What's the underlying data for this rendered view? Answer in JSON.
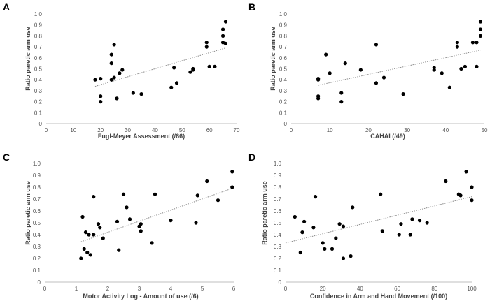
{
  "chart_data": [
    {
      "panel": "A",
      "type": "scatter",
      "xlabel": "Fugl-Meyer Assessment (/66)",
      "ylabel": "Ratio paretic arm use",
      "xlim": [
        0,
        70
      ],
      "ylim": [
        0,
        1.0
      ],
      "xticks": [
        0,
        10,
        20,
        30,
        40,
        50,
        60,
        70
      ],
      "yticks": [
        0,
        0.1,
        0.2,
        0.3,
        0.4,
        0.5,
        0.6,
        0.7,
        0.8,
        0.9,
        1.0
      ],
      "points": [
        {
          "x": 18,
          "y": 0.4
        },
        {
          "x": 20,
          "y": 0.41
        },
        {
          "x": 20,
          "y": 0.25
        },
        {
          "x": 20,
          "y": 0.2
        },
        {
          "x": 24,
          "y": 0.63
        },
        {
          "x": 24,
          "y": 0.55
        },
        {
          "x": 24,
          "y": 0.4
        },
        {
          "x": 25,
          "y": 0.72
        },
        {
          "x": 25,
          "y": 0.42
        },
        {
          "x": 26,
          "y": 0.23
        },
        {
          "x": 27,
          "y": 0.46
        },
        {
          "x": 28,
          "y": 0.49
        },
        {
          "x": 32,
          "y": 0.28
        },
        {
          "x": 35,
          "y": 0.27
        },
        {
          "x": 46,
          "y": 0.33
        },
        {
          "x": 47,
          "y": 0.51
        },
        {
          "x": 48,
          "y": 0.37
        },
        {
          "x": 53,
          "y": 0.47
        },
        {
          "x": 54,
          "y": 0.49
        },
        {
          "x": 54,
          "y": 0.5
        },
        {
          "x": 59,
          "y": 0.74
        },
        {
          "x": 59,
          "y": 0.7
        },
        {
          "x": 60,
          "y": 0.52
        },
        {
          "x": 62,
          "y": 0.52
        },
        {
          "x": 65,
          "y": 0.86
        },
        {
          "x": 65,
          "y": 0.8
        },
        {
          "x": 65,
          "y": 0.74
        },
        {
          "x": 66,
          "y": 0.93
        },
        {
          "x": 66,
          "y": 0.73
        }
      ],
      "trendline": {
        "x": [
          18,
          66
        ],
        "y": [
          0.34,
          0.69
        ]
      }
    },
    {
      "panel": "B",
      "type": "scatter",
      "xlabel": "CAHAI (/49)",
      "ylabel": "Ratio paretic arm use",
      "xlim": [
        0,
        50
      ],
      "ylim": [
        0,
        1.0
      ],
      "xticks": [
        0,
        10,
        20,
        30,
        40,
        50
      ],
      "yticks": [
        0,
        0.1,
        0.2,
        0.3,
        0.4,
        0.5,
        0.6,
        0.7,
        0.8,
        0.9,
        1.0
      ],
      "points": [
        {
          "x": 7,
          "y": 0.41
        },
        {
          "x": 7,
          "y": 0.4
        },
        {
          "x": 7,
          "y": 0.25
        },
        {
          "x": 7,
          "y": 0.23
        },
        {
          "x": 9,
          "y": 0.63
        },
        {
          "x": 10,
          "y": 0.46
        },
        {
          "x": 13,
          "y": 0.28
        },
        {
          "x": 13,
          "y": 0.2
        },
        {
          "x": 14,
          "y": 0.55
        },
        {
          "x": 18,
          "y": 0.49
        },
        {
          "x": 22,
          "y": 0.72
        },
        {
          "x": 22,
          "y": 0.37
        },
        {
          "x": 24,
          "y": 0.42
        },
        {
          "x": 29,
          "y": 0.27
        },
        {
          "x": 37,
          "y": 0.51
        },
        {
          "x": 37,
          "y": 0.49
        },
        {
          "x": 39,
          "y": 0.46
        },
        {
          "x": 41,
          "y": 0.33
        },
        {
          "x": 43,
          "y": 0.74
        },
        {
          "x": 43,
          "y": 0.7
        },
        {
          "x": 44,
          "y": 0.5
        },
        {
          "x": 45,
          "y": 0.52
        },
        {
          "x": 47,
          "y": 0.74
        },
        {
          "x": 48,
          "y": 0.74
        },
        {
          "x": 48,
          "y": 0.52
        },
        {
          "x": 49,
          "y": 0.93
        },
        {
          "x": 49,
          "y": 0.86
        },
        {
          "x": 49,
          "y": 0.8
        }
      ],
      "trendline": {
        "x": [
          7,
          49
        ],
        "y": [
          0.35,
          0.67
        ]
      }
    },
    {
      "panel": "C",
      "type": "scatter",
      "xlabel": "Motor Activity Log - Amount of use (/6)",
      "ylabel": "Ratio paretic arm use",
      "xlim": [
        0,
        6
      ],
      "ylim": [
        0,
        1.0
      ],
      "xticks": [
        0,
        1,
        2,
        3,
        4,
        5,
        6
      ],
      "yticks": [
        0,
        0.1,
        0.2,
        0.3,
        0.4,
        0.5,
        0.6,
        0.7,
        0.8,
        0.9,
        1.0
      ],
      "points": [
        {
          "x": 1.15,
          "y": 0.2
        },
        {
          "x": 1.2,
          "y": 0.55
        },
        {
          "x": 1.25,
          "y": 0.28
        },
        {
          "x": 1.3,
          "y": 0.42
        },
        {
          "x": 1.35,
          "y": 0.25
        },
        {
          "x": 1.4,
          "y": 0.4
        },
        {
          "x": 1.45,
          "y": 0.23
        },
        {
          "x": 1.55,
          "y": 0.72
        },
        {
          "x": 1.55,
          "y": 0.4
        },
        {
          "x": 1.7,
          "y": 0.49
        },
        {
          "x": 1.75,
          "y": 0.46
        },
        {
          "x": 1.85,
          "y": 0.37
        },
        {
          "x": 2.3,
          "y": 0.51
        },
        {
          "x": 2.35,
          "y": 0.27
        },
        {
          "x": 2.5,
          "y": 0.74
        },
        {
          "x": 2.6,
          "y": 0.63
        },
        {
          "x": 2.7,
          "y": 0.53
        },
        {
          "x": 3.0,
          "y": 0.47
        },
        {
          "x": 3.05,
          "y": 0.43
        },
        {
          "x": 3.05,
          "y": 0.49
        },
        {
          "x": 3.4,
          "y": 0.33
        },
        {
          "x": 3.5,
          "y": 0.74
        },
        {
          "x": 4.0,
          "y": 0.52
        },
        {
          "x": 4.8,
          "y": 0.5
        },
        {
          "x": 4.85,
          "y": 0.73
        },
        {
          "x": 5.15,
          "y": 0.85
        },
        {
          "x": 5.5,
          "y": 0.69
        },
        {
          "x": 5.95,
          "y": 0.93
        },
        {
          "x": 5.95,
          "y": 0.8
        }
      ],
      "trendline": {
        "x": [
          1.15,
          5.95
        ],
        "y": [
          0.34,
          0.79
        ]
      }
    },
    {
      "panel": "D",
      "type": "scatter",
      "xlabel": "Confidence in Arm and Hand Movement (/100)",
      "ylabel": "Ratio paretic arm use",
      "xlim": [
        0,
        100
      ],
      "ylim": [
        0,
        1.0
      ],
      "xticks": [
        0,
        20,
        40,
        60,
        80,
        100
      ],
      "yticks": [
        0,
        0.1,
        0.2,
        0.3,
        0.4,
        0.5,
        0.6,
        0.7,
        0.8,
        0.9,
        1.0
      ],
      "points": [
        {
          "x": 5,
          "y": 0.55
        },
        {
          "x": 8,
          "y": 0.25
        },
        {
          "x": 9,
          "y": 0.42
        },
        {
          "x": 10,
          "y": 0.51
        },
        {
          "x": 15,
          "y": 0.46
        },
        {
          "x": 16,
          "y": 0.72
        },
        {
          "x": 20,
          "y": 0.33
        },
        {
          "x": 21,
          "y": 0.28
        },
        {
          "x": 25,
          "y": 0.28
        },
        {
          "x": 27,
          "y": 0.37
        },
        {
          "x": 29,
          "y": 0.49
        },
        {
          "x": 31,
          "y": 0.47
        },
        {
          "x": 31,
          "y": 0.2
        },
        {
          "x": 35,
          "y": 0.22
        },
        {
          "x": 36,
          "y": 0.63
        },
        {
          "x": 51,
          "y": 0.74
        },
        {
          "x": 52,
          "y": 0.43
        },
        {
          "x": 61,
          "y": 0.4
        },
        {
          "x": 62,
          "y": 0.49
        },
        {
          "x": 67,
          "y": 0.4
        },
        {
          "x": 68,
          "y": 0.53
        },
        {
          "x": 72,
          "y": 0.52
        },
        {
          "x": 76,
          "y": 0.5
        },
        {
          "x": 86,
          "y": 0.85
        },
        {
          "x": 93,
          "y": 0.74
        },
        {
          "x": 94,
          "y": 0.73
        },
        {
          "x": 97,
          "y": 0.93
        },
        {
          "x": 100,
          "y": 0.8
        },
        {
          "x": 100,
          "y": 0.69
        }
      ],
      "trendline": {
        "x": [
          0,
          100
        ],
        "y": [
          0.33,
          0.72
        ]
      }
    }
  ]
}
